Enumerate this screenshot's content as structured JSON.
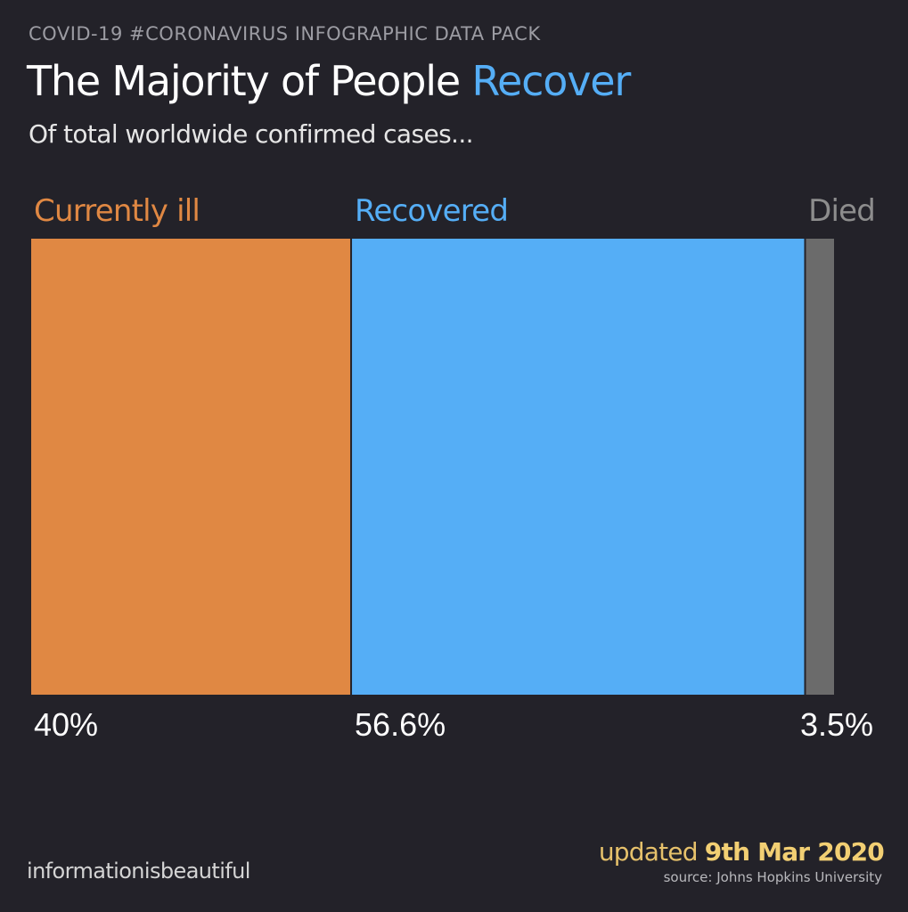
{
  "header": {
    "kicker": "COVID-19 #CORONAVIRUS INFOGRAPHIC DATA PACK",
    "title_main": "The Majority of People ",
    "title_accent": "Recover",
    "subtitle": "Of total worldwide confirmed cases..."
  },
  "footer": {
    "credit": "informationisbeautiful",
    "updated_label": "updated ",
    "updated_date": "9th Mar 2020",
    "source": "source: Johns Hopkins University"
  },
  "chart_data": {
    "type": "bar",
    "orientation": "horizontal-stacked",
    "categories": [
      "Currently ill",
      "Recovered",
      "Died"
    ],
    "values": [
      40,
      56.6,
      3.5
    ],
    "value_labels": [
      "40%",
      "56.6%",
      "3.5%"
    ],
    "colors": [
      "#e08843",
      "#55aef6",
      "#6b6b6b"
    ],
    "label_colors": [
      "#e08843",
      "#55aef6",
      "#8d8d8d"
    ],
    "unit": "%",
    "title": "The Majority of People Recover",
    "subtitle": "Of total worldwide confirmed cases...",
    "grid": false,
    "legend": "none"
  }
}
